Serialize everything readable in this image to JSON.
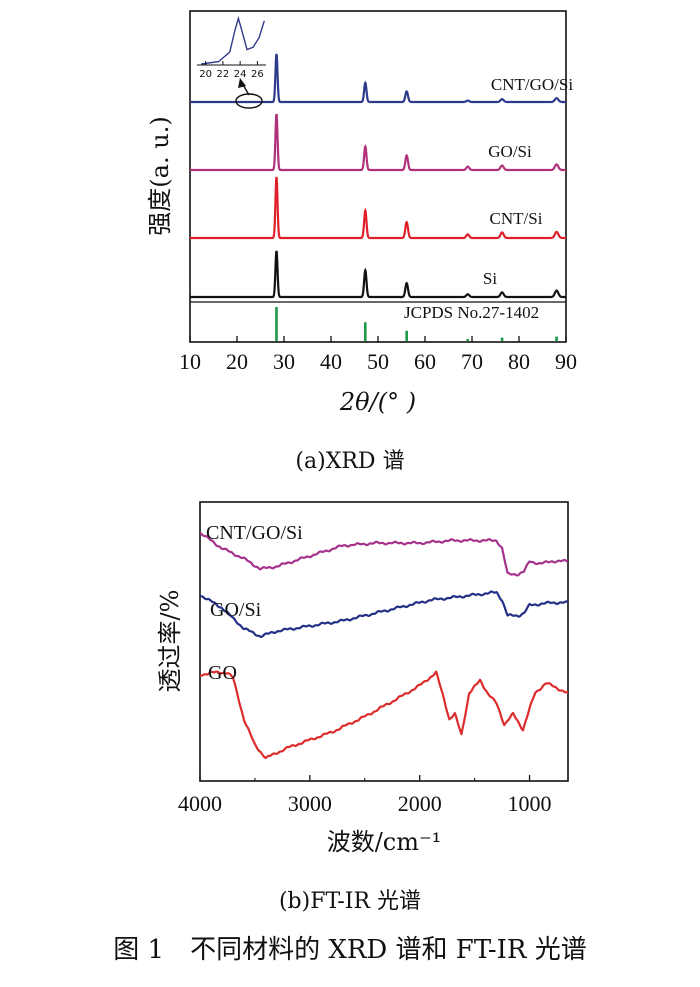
{
  "figure_caption": "图 1　不同材料的 XRD 谱和 FT-IR 光谱",
  "colors": {
    "CNT/GO/Si": "#2e3a8c",
    "GO/Si": "#b0307a",
    "CNT/Si": "#e0202a",
    "Si": "#111111",
    "JCPDS": "#1a9a4a",
    "IR_CNT/GO/Si": "#a5328c",
    "IR_GO/Si": "#233085",
    "IR_GO": "#dd2c2c"
  },
  "chart_data": [
    {
      "type": "line",
      "panel": "xrd",
      "caption": "(a)XRD 谱",
      "xlabel": "2θ/(° )",
      "ylabel": "强度(a. u.)",
      "xlim": [
        10,
        90
      ],
      "x_ticks": [
        10,
        20,
        30,
        40,
        50,
        60,
        70,
        80,
        90
      ],
      "peaks_2theta": [
        28.4,
        47.3,
        56.1,
        69.1,
        76.4,
        88.0
      ],
      "series": [
        {
          "name": "CNT/GO/Si",
          "label": "CNT/GO/Si",
          "intensities": [
            1.0,
            0.4,
            0.22,
            0.03,
            0.06,
            0.08
          ]
        },
        {
          "name": "GO/Si",
          "label": "GO/Si",
          "intensities": [
            1.0,
            0.42,
            0.26,
            0.06,
            0.08,
            0.1
          ]
        },
        {
          "name": "CNT/Si",
          "label": "CNT/Si",
          "intensities": [
            1.0,
            0.45,
            0.26,
            0.06,
            0.09,
            0.1
          ]
        },
        {
          "name": "Si",
          "label": "Si",
          "intensities": [
            1.0,
            0.58,
            0.3,
            0.06,
            0.1,
            0.14
          ]
        }
      ],
      "reference": {
        "name": "JCPDS",
        "label": "JCPDS No.27-1402",
        "intensities": [
          1.0,
          0.55,
          0.3,
          0.06,
          0.1,
          0.13
        ]
      },
      "inset": {
        "x_ticks": [
          20,
          22,
          24,
          26
        ],
        "xlim": [
          19,
          27
        ],
        "points": [
          [
            19.5,
            0.0
          ],
          [
            21.5,
            0.05
          ],
          [
            22.8,
            0.25
          ],
          [
            23.4,
            0.7
          ],
          [
            23.8,
            0.95
          ],
          [
            24.2,
            0.7
          ],
          [
            24.8,
            0.3
          ],
          [
            25.5,
            0.35
          ],
          [
            26.2,
            0.55
          ],
          [
            26.8,
            0.9
          ]
        ]
      }
    },
    {
      "type": "line",
      "panel": "ftir",
      "caption": "(b)FT-IR 光谱",
      "xlabel": "波数/cm⁻¹",
      "ylabel": "透过率/%",
      "xlim": [
        4000,
        650
      ],
      "x_ticks": [
        4000,
        3000,
        2000,
        1000
      ],
      "series": [
        {
          "name": "CNT/GO/Si",
          "label": "CNT/GO/Si",
          "points": [
            [
              4000,
              0.92
            ],
            [
              3800,
              0.86
            ],
            [
              3600,
              0.82
            ],
            [
              3450,
              0.78
            ],
            [
              3300,
              0.79
            ],
            [
              3000,
              0.83
            ],
            [
              2700,
              0.87
            ],
            [
              2400,
              0.88
            ],
            [
              2000,
              0.88
            ],
            [
              1700,
              0.89
            ],
            [
              1500,
              0.89
            ],
            [
              1300,
              0.89
            ],
            [
              1250,
              0.86
            ],
            [
              1200,
              0.76
            ],
            [
              1100,
              0.76
            ],
            [
              1050,
              0.77
            ],
            [
              1000,
              0.81
            ],
            [
              900,
              0.8
            ],
            [
              800,
              0.81
            ],
            [
              650,
              0.81
            ]
          ]
        },
        {
          "name": "GO/Si",
          "label": "GO/Si",
          "points": [
            [
              4000,
              0.68
            ],
            [
              3800,
              0.63
            ],
            [
              3600,
              0.55
            ],
            [
              3450,
              0.52
            ],
            [
              3300,
              0.54
            ],
            [
              3000,
              0.56
            ],
            [
              2700,
              0.58
            ],
            [
              2400,
              0.61
            ],
            [
              2100,
              0.64
            ],
            [
              1900,
              0.66
            ],
            [
              1700,
              0.67
            ],
            [
              1500,
              0.68
            ],
            [
              1300,
              0.69
            ],
            [
              1250,
              0.66
            ],
            [
              1200,
              0.6
            ],
            [
              1100,
              0.6
            ],
            [
              1050,
              0.61
            ],
            [
              1000,
              0.64
            ],
            [
              800,
              0.65
            ],
            [
              650,
              0.65
            ]
          ]
        },
        {
          "name": "GO",
          "label": "GO",
          "points": [
            [
              4000,
              0.37
            ],
            [
              3900,
              0.38
            ],
            [
              3750,
              0.38
            ],
            [
              3700,
              0.36
            ],
            [
              3600,
              0.2
            ],
            [
              3500,
              0.1
            ],
            [
              3400,
              0.05
            ],
            [
              3200,
              0.09
            ],
            [
              3000,
              0.12
            ],
            [
              2800,
              0.15
            ],
            [
              2500,
              0.21
            ],
            [
              2200,
              0.28
            ],
            [
              2000,
              0.33
            ],
            [
              1850,
              0.38
            ],
            [
              1780,
              0.28
            ],
            [
              1730,
              0.2
            ],
            [
              1680,
              0.22
            ],
            [
              1620,
              0.14
            ],
            [
              1550,
              0.3
            ],
            [
              1450,
              0.35
            ],
            [
              1380,
              0.3
            ],
            [
              1300,
              0.26
            ],
            [
              1230,
              0.18
            ],
            [
              1150,
              0.22
            ],
            [
              1060,
              0.16
            ],
            [
              1000,
              0.24
            ],
            [
              950,
              0.3
            ],
            [
              850,
              0.34
            ],
            [
              750,
              0.32
            ],
            [
              650,
              0.3
            ]
          ]
        }
      ]
    }
  ]
}
